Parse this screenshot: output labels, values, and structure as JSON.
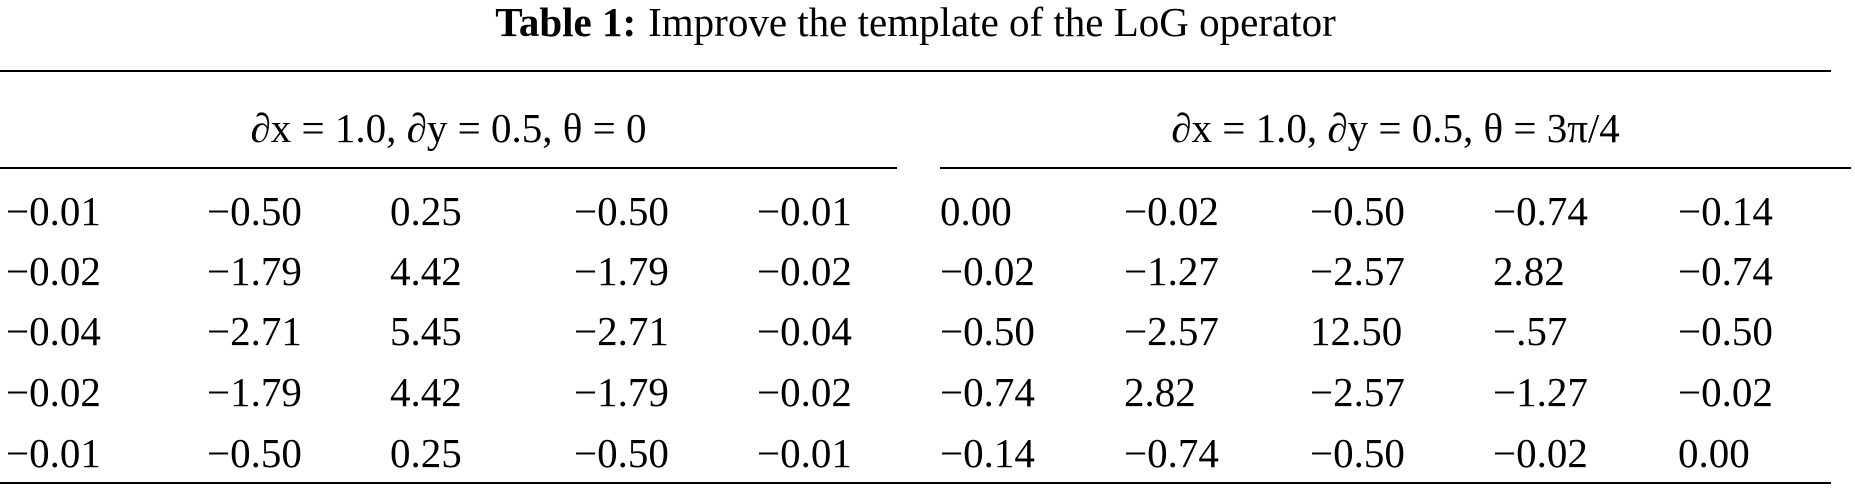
{
  "caption": {
    "label": "Table 1:",
    "text": "Improve the template of the LoG operator"
  },
  "table": {
    "groups": [
      "∂x = 1.0, ∂y = 0.5, θ = 0",
      "∂x = 1.0, ∂y = 0.5, θ = 3π/4"
    ],
    "rows": [
      [
        "−0.01",
        "−0.50",
        "0.25",
        "−0.50",
        "−0.01",
        "0.00",
        "−0.02",
        "−0.50",
        "−0.74",
        "−0.14"
      ],
      [
        "−0.02",
        "−1.79",
        "4.42",
        "−1.79",
        "−0.02",
        "−0.02",
        "−1.27",
        "−2.57",
        "2.82",
        "−0.74"
      ],
      [
        "−0.04",
        "−2.71",
        "5.45",
        "−2.71",
        "−0.04",
        "−0.50",
        "−2.57",
        "12.50",
        "−.57",
        "−0.50"
      ],
      [
        "−0.02",
        "−1.79",
        "4.42",
        "−1.79",
        "−0.02",
        "−0.74",
        "2.82",
        "−2.57",
        "−1.27",
        "−0.02"
      ],
      [
        "−0.01",
        "−0.50",
        "0.25",
        "−0.50",
        "−0.01",
        "−0.14",
        "−0.74",
        "−0.50",
        "−0.02",
        "0.00"
      ]
    ]
  }
}
